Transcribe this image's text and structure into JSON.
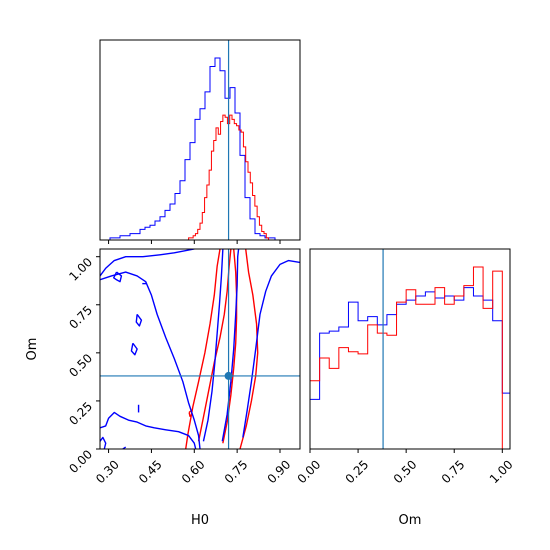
{
  "chart_data": {
    "type": "corner",
    "parameters": [
      "H0",
      "Om"
    ],
    "truth": {
      "H0": 0.72,
      "Om": 0.38
    },
    "colors": {
      "blue": "#0000ff",
      "red": "#ff0000",
      "truth": "#1f77b4"
    },
    "panels": [
      {
        "name": "h0-marginal",
        "type": "histogram",
        "xlim": [
          0.27,
          0.97
        ],
        "xticks": [
          0.3,
          0.45,
          0.6,
          0.75,
          0.9
        ],
        "tick_labels_shown": false,
        "series": [
          {
            "color": "blue",
            "bin_edges": [
              0.27,
              0.2875,
              0.305,
              0.3225,
              0.34,
              0.3575,
              0.375,
              0.3925,
              0.41,
              0.4275,
              0.445,
              0.4625,
              0.48,
              0.4975,
              0.515,
              0.5325,
              0.55,
              0.5675,
              0.585,
              0.6025,
              0.62,
              0.6375,
              0.655,
              0.6725,
              0.69,
              0.7075,
              0.725,
              0.7425,
              0.76,
              0.7775,
              0.795,
              0.8125,
              0.83,
              0.8475,
              0.865,
              0.8825,
              0.9,
              0.9175,
              0.935,
              0.9525,
              0.97
            ],
            "values": [
              0,
              0,
              1,
              1,
              2,
              2,
              3,
              3,
              5,
              6,
              7,
              9,
              11,
              14,
              17,
              22,
              28,
              38,
              46,
              57,
              62,
              70,
              82,
              86,
              80,
              67,
              72,
              60,
              40,
              20,
              10,
              3,
              2,
              1,
              1,
              0,
              0,
              0,
              0,
              0
            ]
          },
          {
            "color": "red",
            "bin_edges": [
              0.572,
              0.58,
              0.588,
              0.596,
              0.604,
              0.612,
              0.62,
              0.628,
              0.636,
              0.644,
              0.652,
              0.66,
              0.668,
              0.676,
              0.684,
              0.692,
              0.7,
              0.708,
              0.716,
              0.724,
              0.732,
              0.74,
              0.748,
              0.756,
              0.764,
              0.772,
              0.78,
              0.788,
              0.796,
              0.804,
              0.812,
              0.82,
              0.828,
              0.836,
              0.844,
              0.852,
              0.86,
              0.868
            ],
            "values": [
              0,
              1,
              1,
              2,
              3,
              5,
              8,
              13,
              20,
              26,
              33,
              42,
              47,
              53,
              50,
              56,
              59,
              58,
              55,
              59,
              57,
              55,
              54,
              52,
              51,
              44,
              37,
              32,
              27,
              21,
              16,
              11,
              7,
              4,
              3,
              1,
              0
            ]
          }
        ]
      },
      {
        "name": "joint-contours",
        "type": "contour",
        "xlabel": "H0",
        "ylabel": "Om",
        "xlim": [
          0.27,
          0.97
        ],
        "ylim": [
          0,
          1.04
        ],
        "xticks": [
          0.3,
          0.45,
          0.6,
          0.75,
          0.9
        ],
        "xtick_labels": [
          "0.30",
          "0.45",
          "0.60",
          "0.75",
          "0.90"
        ],
        "yticks": [
          0,
          0.25,
          0.5,
          0.75,
          1.0
        ],
        "ytick_labels": [
          "0.00",
          "0.25",
          "0.50",
          "0.75",
          "1.00"
        ],
        "series": [
          {
            "color": "red",
            "contours": [
              [
                [
                  0.615,
                  0.04
                ],
                [
                  0.63,
                  0.15
                ],
                [
                  0.65,
                  0.3
                ],
                [
                  0.67,
                  0.45
                ],
                [
                  0.69,
                  0.58
                ],
                [
                  0.705,
                  0.7
                ],
                [
                  0.715,
                  0.82
                ],
                [
                  0.722,
                  0.95
                ],
                [
                  0.728,
                  1.04
                ]
              ],
              [
                [
                  0.738,
                  1.04
                ],
                [
                  0.745,
                  0.92
                ],
                [
                  0.748,
                  0.8
                ],
                [
                  0.748,
                  0.68
                ],
                [
                  0.745,
                  0.55
                ],
                [
                  0.738,
                  0.42
                ],
                [
                  0.728,
                  0.28
                ],
                [
                  0.715,
                  0.14
                ],
                [
                  0.7,
                  0.03
                ]
              ],
              [
                [
                  0.57,
                  0.0
                ],
                [
                  0.578,
                  0.08
                ],
                [
                  0.595,
                  0.22
                ],
                [
                  0.615,
                  0.35
                ],
                [
                  0.637,
                  0.5
                ],
                [
                  0.655,
                  0.65
                ],
                [
                  0.67,
                  0.8
                ],
                [
                  0.68,
                  0.95
                ],
                [
                  0.69,
                  1.04
                ]
              ],
              [
                [
                  0.76,
                  0.0
                ],
                [
                  0.782,
                  0.12
                ],
                [
                  0.8,
                  0.25
                ],
                [
                  0.815,
                  0.38
                ],
                [
                  0.822,
                  0.5
                ],
                [
                  0.818,
                  0.65
                ],
                [
                  0.805,
                  0.8
                ],
                [
                  0.79,
                  0.92
                ],
                [
                  0.78,
                  1.04
                ]
              ],
              [
                [
                  0.582,
                  0.19
                ],
                [
                  0.59,
                  0.2
                ],
                [
                  0.592,
                  0.18
                ],
                [
                  0.585,
                  0.17
                ],
                [
                  0.582,
                  0.19
                ]
              ]
            ]
          },
          {
            "color": "blue",
            "contours": [
              [
                [
                  0.698,
                  0.04
                ],
                [
                  0.715,
                  0.18
                ],
                [
                  0.728,
                  0.35
                ],
                [
                  0.738,
                  0.52
                ],
                [
                  0.745,
                  0.7
                ],
                [
                  0.75,
                  0.85
                ],
                [
                  0.752,
                  1.0
                ],
                [
                  0.755,
                  1.04
                ]
              ],
              [
                [
                  0.7,
                  1.04
                ],
                [
                  0.695,
                  0.9
                ],
                [
                  0.688,
                  0.75
                ],
                [
                  0.68,
                  0.6
                ],
                [
                  0.672,
                  0.45
                ],
                [
                  0.662,
                  0.3
                ],
                [
                  0.648,
                  0.15
                ],
                [
                  0.632,
                  0.04
                ]
              ],
              [
                [
                  0.27,
                  0.11
                ],
                [
                  0.29,
                  0.12
                ],
                [
                  0.3,
                  0.16
                ],
                [
                  0.32,
                  0.19
                ],
                [
                  0.34,
                  0.17
                ],
                [
                  0.37,
                  0.15
                ],
                [
                  0.4,
                  0.14
                ],
                [
                  0.43,
                  0.12
                ],
                [
                  0.46,
                  0.11
                ],
                [
                  0.5,
                  0.1
                ],
                [
                  0.545,
                  0.09
                ],
                [
                  0.58,
                  0.07
                ],
                [
                  0.6,
                  0.03
                ],
                [
                  0.605,
                  0.0
                ]
              ],
              [
                [
                  0.27,
                  0.88
                ],
                [
                  0.31,
                  0.9
                ],
                [
                  0.36,
                  0.92
                ],
                [
                  0.4,
                  0.9
                ],
                [
                  0.43,
                  0.87
                ],
                [
                  0.45,
                  0.8
                ],
                [
                  0.47,
                  0.7
                ],
                [
                  0.5,
                  0.58
                ],
                [
                  0.53,
                  0.47
                ],
                [
                  0.56,
                  0.35
                ],
                [
                  0.58,
                  0.24
                ],
                [
                  0.6,
                  0.15
                ],
                [
                  0.615,
                  0.07
                ],
                [
                  0.62,
                  0.0
                ]
              ],
              [
                [
                  0.27,
                  0.9
                ],
                [
                  0.29,
                  0.94
                ],
                [
                  0.32,
                  0.98
                ],
                [
                  0.36,
                  1.0
                ],
                [
                  0.42,
                  1.0
                ],
                [
                  0.48,
                  1.01
                ],
                [
                  0.53,
                  1.02
                ],
                [
                  0.6,
                  1.04
                ]
              ],
              [
                [
                  0.77,
                  0.06
                ],
                [
                  0.785,
                  0.2
                ],
                [
                  0.8,
                  0.35
                ],
                [
                  0.815,
                  0.52
                ],
                [
                  0.83,
                  0.7
                ],
                [
                  0.85,
                  0.82
                ],
                [
                  0.87,
                  0.9
                ],
                [
                  0.9,
                  0.96
                ],
                [
                  0.93,
                  0.98
                ],
                [
                  0.97,
                  0.97
                ]
              ],
              [
                [
                  0.328,
                  0.92
                ],
                [
                  0.345,
                  0.9
                ],
                [
                  0.34,
                  0.87
                ],
                [
                  0.328,
                  0.88
                ],
                [
                  0.318,
                  0.89
                ],
                [
                  0.328,
                  0.92
                ]
              ],
              [
                [
                  0.4,
                  0.7
                ],
                [
                  0.415,
                  0.67
                ],
                [
                  0.408,
                  0.64
                ],
                [
                  0.397,
                  0.66
                ],
                [
                  0.4,
                  0.7
                ]
              ],
              [
                [
                  0.385,
                  0.55
                ],
                [
                  0.4,
                  0.52
                ],
                [
                  0.392,
                  0.49
                ],
                [
                  0.38,
                  0.51
                ],
                [
                  0.385,
                  0.55
                ]
              ],
              [
                [
                  0.418,
                  0.86
                ],
                [
                  0.432,
                  0.86
                ]
              ],
              [
                [
                  0.405,
                  0.19
                ],
                [
                  0.405,
                  0.23
                ]
              ],
              [
                [
                  0.27,
                  0.04
                ],
                [
                  0.28,
                  0.06
                ],
                [
                  0.29,
                  0.03
                ],
                [
                  0.285,
                  0.0
                ]
              ],
              [
                [
                  0.35,
                  0.0
                ],
                [
                  0.36,
                  0.01
                ]
              ]
            ]
          }
        ],
        "best_fit_point": {
          "x": 0.72,
          "y": 0.38
        }
      },
      {
        "name": "om-marginal",
        "type": "histogram",
        "xlabel": "Om",
        "xlim": [
          0,
          1.04
        ],
        "xticks": [
          0,
          0.25,
          0.5,
          0.75,
          1.0
        ],
        "xtick_labels": [
          "0.00",
          "0.25",
          "0.50",
          "0.75",
          "1.00"
        ],
        "series": [
          {
            "color": "blue",
            "bin_edges": [
              0.0,
              0.05,
              0.1,
              0.15,
              0.2,
              0.25,
              0.3,
              0.35,
              0.4,
              0.45,
              0.5,
              0.55,
              0.6,
              0.65,
              0.7,
              0.75,
              0.8,
              0.85,
              0.9,
              0.95,
              1.0,
              1.04
            ],
            "values": [
              24,
              56,
              57,
              59,
              71,
              62,
              64,
              60,
              65,
              70,
              72,
              74,
              76,
              73,
              74,
              72,
              78,
              74,
              72,
              62,
              27
            ]
          },
          {
            "color": "red",
            "bin_edges": [
              0.0,
              0.05,
              0.1,
              0.15,
              0.2,
              0.25,
              0.3,
              0.35,
              0.4,
              0.45,
              0.5,
              0.55,
              0.6,
              0.65,
              0.7,
              0.75,
              0.8,
              0.85,
              0.9,
              0.95,
              1.0,
              1.01
            ],
            "values": [
              33,
              44,
              39,
              49,
              47,
              46,
              60,
              56,
              55,
              71,
              77,
              70,
              70,
              78,
              70,
              74,
              79,
              88,
              68,
              86,
              0
            ]
          }
        ]
      }
    ]
  }
}
